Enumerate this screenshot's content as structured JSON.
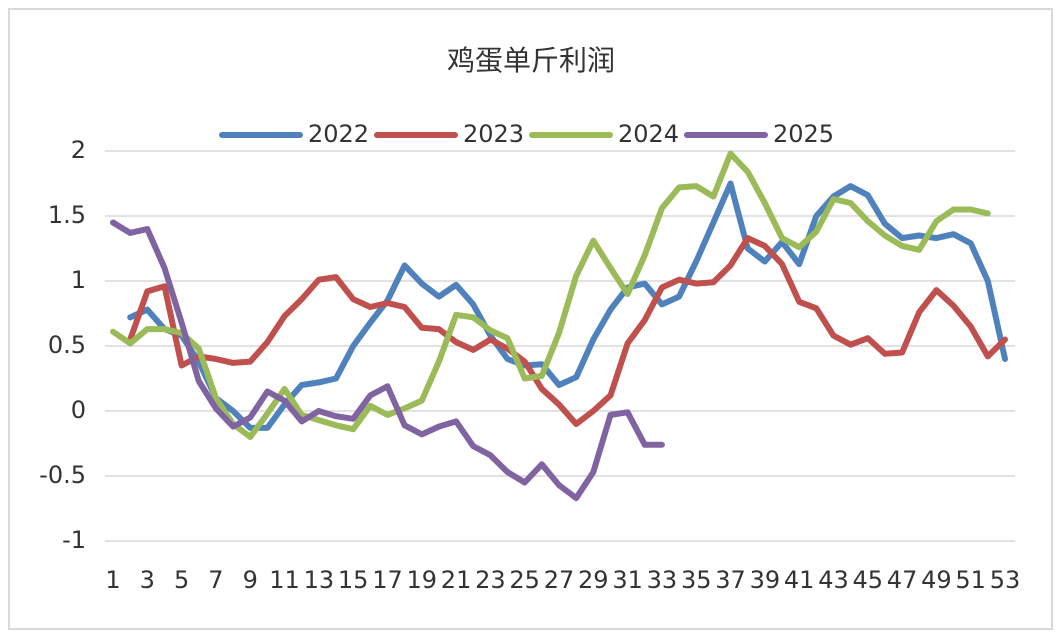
{
  "chart_data": {
    "type": "line",
    "title": "鸡蛋单斤利润",
    "categories": [
      "1",
      null,
      "3",
      null,
      "5",
      null,
      "7",
      null,
      "9",
      null,
      "11",
      null,
      "13",
      null,
      "15",
      null,
      "17",
      null,
      "19",
      null,
      "21",
      null,
      "23",
      null,
      "25",
      null,
      "27",
      null,
      "29",
      null,
      "31",
      null,
      "33",
      null,
      "35",
      null,
      "37",
      null,
      "39",
      null,
      "41",
      null,
      "43",
      null,
      "45",
      null,
      "47",
      null,
      "49",
      null,
      "51",
      null,
      "53"
    ],
    "series": [
      {
        "name": "2022",
        "color": "#4f81bd",
        "values": [
          null,
          0.72,
          0.78,
          0.63,
          0.58,
          0.38,
          0.1,
          0.0,
          -0.13,
          -0.13,
          0.05,
          0.2,
          0.22,
          0.25,
          0.5,
          0.68,
          0.85,
          1.12,
          0.98,
          0.88,
          0.97,
          0.82,
          0.58,
          0.4,
          0.35,
          0.36,
          0.2,
          0.26,
          0.55,
          0.78,
          0.95,
          0.98,
          0.82,
          0.88,
          1.15,
          1.45,
          1.75,
          1.25,
          1.15,
          1.3,
          1.13,
          1.5,
          1.65,
          1.73,
          1.66,
          1.44,
          1.33,
          1.35,
          1.33,
          1.36,
          1.29,
          1.0,
          0.4
        ]
      },
      {
        "name": "2023",
        "color": "#c0504d",
        "values": [
          null,
          0.55,
          0.92,
          0.96,
          0.35,
          0.42,
          0.4,
          0.37,
          0.38,
          0.53,
          0.73,
          0.86,
          1.01,
          1.03,
          0.86,
          0.8,
          0.83,
          0.8,
          0.64,
          0.63,
          0.53,
          0.47,
          0.55,
          0.48,
          0.38,
          0.17,
          0.05,
          -0.1,
          0.0,
          0.12,
          0.52,
          0.7,
          0.95,
          1.01,
          0.98,
          0.99,
          1.12,
          1.33,
          1.27,
          1.13,
          0.84,
          0.79,
          0.58,
          0.51,
          0.56,
          0.44,
          0.45,
          0.76,
          0.93,
          0.81,
          0.65,
          0.42,
          0.55
        ]
      },
      {
        "name": "2024",
        "color": "#9bbb59",
        "values": [
          0.61,
          0.52,
          0.63,
          0.63,
          0.6,
          0.48,
          0.1,
          -0.1,
          -0.2,
          -0.02,
          0.17,
          -0.03,
          -0.07,
          -0.11,
          -0.14,
          0.04,
          -0.03,
          0.02,
          0.08,
          0.38,
          0.74,
          0.72,
          0.62,
          0.56,
          0.25,
          0.27,
          0.6,
          1.04,
          1.31,
          1.1,
          0.9,
          1.2,
          1.56,
          1.72,
          1.73,
          1.65,
          1.98,
          1.84,
          1.6,
          1.33,
          1.26,
          1.38,
          1.63,
          1.6,
          1.46,
          1.35,
          1.27,
          1.24,
          1.46,
          1.55,
          1.55,
          1.52,
          null
        ]
      },
      {
        "name": "2025",
        "color": "#8064a2",
        "values": [
          1.45,
          1.37,
          1.4,
          1.1,
          0.68,
          0.23,
          0.02,
          -0.12,
          -0.05,
          0.15,
          0.08,
          -0.08,
          0.0,
          -0.04,
          -0.06,
          0.12,
          0.19,
          -0.11,
          -0.18,
          -0.12,
          -0.08,
          -0.27,
          -0.34,
          -0.47,
          -0.55,
          -0.41,
          -0.57,
          -0.67,
          -0.47,
          -0.03,
          -0.01,
          -0.26,
          -0.26,
          null,
          null,
          null,
          null,
          null,
          null,
          null,
          null,
          null,
          null,
          null,
          null,
          null,
          null,
          null,
          null,
          null,
          null,
          null,
          null
        ]
      }
    ],
    "ylim": [
      -1,
      2
    ],
    "yticks": [
      2,
      1.5,
      1,
      0.5,
      0,
      -0.5,
      -1
    ],
    "grid": true,
    "legend": "top"
  }
}
